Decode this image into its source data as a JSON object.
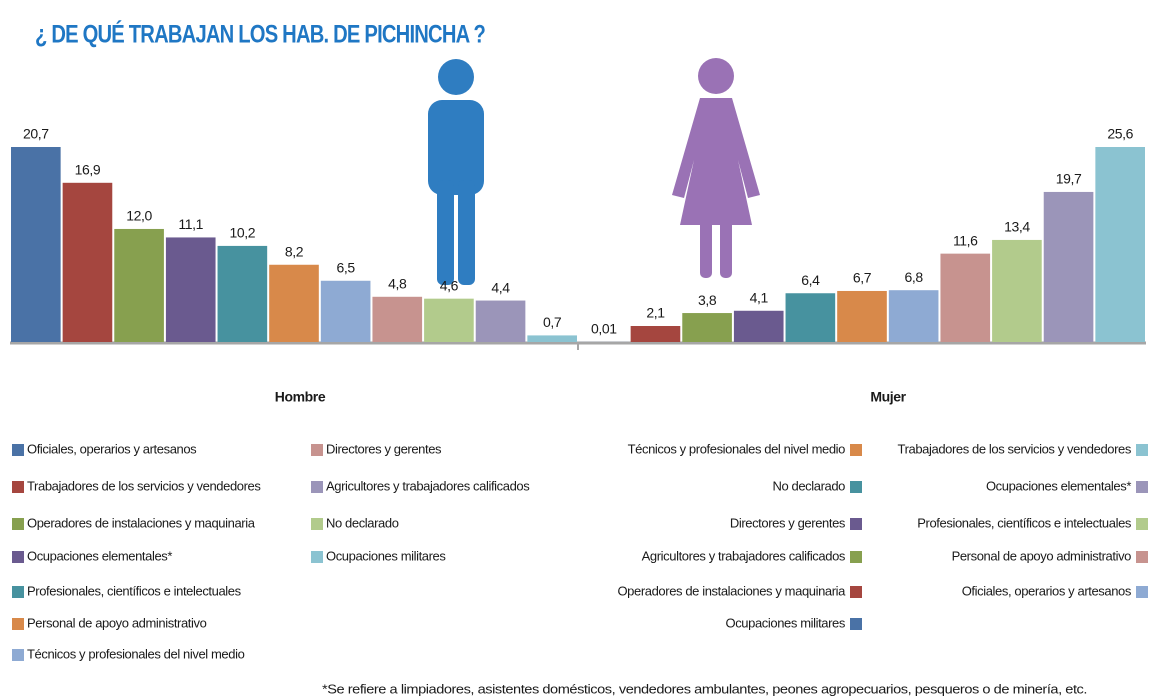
{
  "title": "¿ DE QUÉ TRABAJAN LOS HAB. DE PICHINCHA ?",
  "footnote": "*Se refiere a limpiadores, asistentes domésticos, vendedores ambulantes, peones agropecuarios, pesqueros o de minería, etc.",
  "chart_data": [
    {
      "type": "bar",
      "title": "Hombre",
      "categories": [
        "Oficiales, operarios y artesanos",
        "Trabajadores de los servicios y vendedores",
        "Operadores de instalaciones y maquinaria",
        "Ocupaciones elementales*",
        "Profesionales, científicos e intelectuales",
        "Personal de apoyo administrativo",
        "Técnicos y profesionales del nivel medio",
        "Directores y gerentes",
        "No declarado",
        "Agricultores y trabajadores calificados",
        "Ocupaciones militares"
      ],
      "values": [
        20.7,
        16.9,
        12.0,
        11.1,
        10.2,
        8.2,
        6.5,
        4.8,
        4.6,
        4.4,
        0.7
      ],
      "value_labels": [
        "20,7",
        "16,9",
        "12,0",
        "11,1",
        "10,2",
        "8,2",
        "6,5",
        "4,8",
        "4,6",
        "4,4",
        "0,7"
      ],
      "colors": [
        "#4a72a6",
        "#a5463f",
        "#87a04f",
        "#6a5a8f",
        "#47929f",
        "#d8894a",
        "#8eaad3",
        "#c7938f",
        "#b2cb8c",
        "#9b95b9",
        "#8bc3d1"
      ]
    },
    {
      "type": "bar",
      "title": "Mujer",
      "categories": [
        "Ocupaciones militares",
        "Operadores de instalaciones y maquinaria",
        "Agricultores y trabajadores calificados",
        "Directores y gerentes",
        "No declarado",
        "Técnicos y profesionales del nivel medio",
        "Oficiales, operarios y artesanos",
        "Personal de apoyo administrativo",
        "Profesionales, científicos e intelectuales",
        "Ocupaciones elementales*",
        "Trabajadores de los servicios y vendedores"
      ],
      "values": [
        0.01,
        2.1,
        3.8,
        4.1,
        6.4,
        6.7,
        6.8,
        11.6,
        13.4,
        19.7,
        25.6
      ],
      "value_labels": [
        "0,01",
        "2,1",
        "3,8",
        "4,1",
        "6,4",
        "6,7",
        "6,8",
        "11,6",
        "13,4",
        "19,7",
        "25,6"
      ],
      "colors": [
        "#4a72a6",
        "#a5463f",
        "#87a04f",
        "#6a5a8f",
        "#47929f",
        "#d8894a",
        "#8eaad3",
        "#c7938f",
        "#b2cb8c",
        "#9b95b9",
        "#8bc3d1"
      ]
    }
  ]
}
